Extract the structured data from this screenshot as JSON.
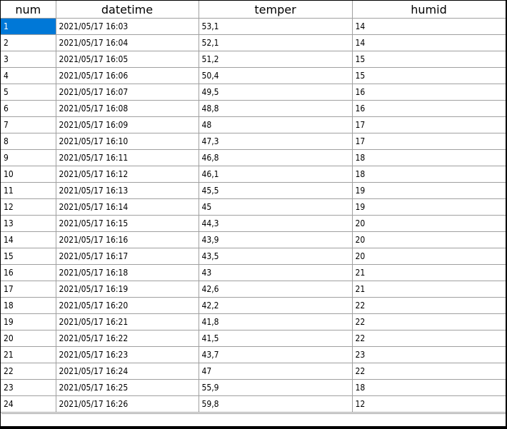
{
  "columns": [
    "num",
    "datetime",
    "temper",
    "humid"
  ],
  "rows": [
    [
      "1",
      "2021/05/17 16:03",
      "53,1",
      "14"
    ],
    [
      "2",
      "2021/05/17 16:04",
      "52,1",
      "14"
    ],
    [
      "3",
      "2021/05/17 16:05",
      "51,2",
      "15"
    ],
    [
      "4",
      "2021/05/17 16:06",
      "50,4",
      "15"
    ],
    [
      "5",
      "2021/05/17 16:07",
      "49,5",
      "16"
    ],
    [
      "6",
      "2021/05/17 16:08",
      "48,8",
      "16"
    ],
    [
      "7",
      "2021/05/17 16:09",
      "48",
      "17"
    ],
    [
      "8",
      "2021/05/17 16:10",
      "47,3",
      "17"
    ],
    [
      "9",
      "2021/05/17 16:11",
      "46,8",
      "18"
    ],
    [
      "10",
      "2021/05/17 16:12",
      "46,1",
      "18"
    ],
    [
      "11",
      "2021/05/17 16:13",
      "45,5",
      "19"
    ],
    [
      "12",
      "2021/05/17 16:14",
      "45",
      "19"
    ],
    [
      "13",
      "2021/05/17 16:15",
      "44,3",
      "20"
    ],
    [
      "14",
      "2021/05/17 16:16",
      "43,9",
      "20"
    ],
    [
      "15",
      "2021/05/17 16:17",
      "43,5",
      "20"
    ],
    [
      "16",
      "2021/05/17 16:18",
      "43",
      "21"
    ],
    [
      "17",
      "2021/05/17 16:19",
      "42,6",
      "21"
    ],
    [
      "18",
      "2021/05/17 16:20",
      "42,2",
      "22"
    ],
    [
      "19",
      "2021/05/17 16:21",
      "41,8",
      "22"
    ],
    [
      "20",
      "2021/05/17 16:22",
      "41,5",
      "22"
    ],
    [
      "21",
      "2021/05/17 16:23",
      "43,7",
      "23"
    ],
    [
      "22",
      "2021/05/17 16:24",
      "47",
      "22"
    ],
    [
      "23",
      "2021/05/17 16:25",
      "55,9",
      "18"
    ],
    [
      "24",
      "2021/05/17 16:26",
      "59,8",
      "12"
    ]
  ],
  "selection": {
    "row": 0,
    "col": 0
  },
  "colors": {
    "selection_bg": "#0078d7",
    "selection_fg": "#ffffff",
    "gridline": "#a0a0a0",
    "frame": "#000000"
  }
}
